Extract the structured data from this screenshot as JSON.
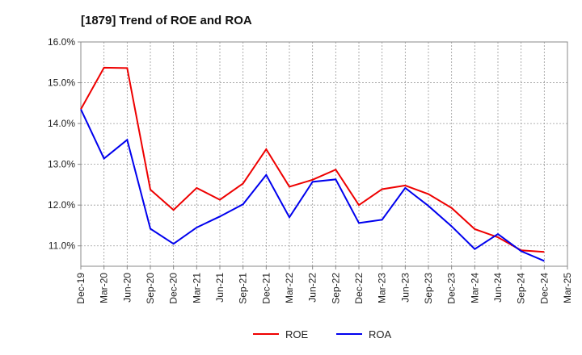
{
  "chart_data": {
    "type": "line",
    "title": "[1879]  Trend of ROE and ROA",
    "xlabel": "",
    "ylabel": "",
    "x": [
      "Dec-19",
      "Mar-20",
      "Jun-20",
      "Sep-20",
      "Dec-20",
      "Mar-21",
      "Jun-21",
      "Sep-21",
      "Dec-21",
      "Mar-22",
      "Jun-22",
      "Sep-22",
      "Dec-22",
      "Mar-23",
      "Jun-23",
      "Sep-23",
      "Dec-23",
      "Mar-24",
      "Jun-24",
      "Sep-24",
      "Dec-24",
      "Mar-25"
    ],
    "ylim": [
      10.5,
      16.0
    ],
    "yticks": [
      11.0,
      12.0,
      13.0,
      14.0,
      15.0,
      16.0
    ],
    "ytick_labels": [
      "11.0%",
      "12.0%",
      "13.0%",
      "14.0%",
      "15.0%",
      "16.0%"
    ],
    "grid": true,
    "legend_position": "bottom-center",
    "series": [
      {
        "name": "ROE",
        "color": "#ee0000",
        "values": [
          14.35,
          15.37,
          15.36,
          12.38,
          11.88,
          12.42,
          12.13,
          12.53,
          13.37,
          12.45,
          12.62,
          12.87,
          12.0,
          12.39,
          12.48,
          12.27,
          11.93,
          11.41,
          11.21,
          10.89,
          10.85,
          null
        ]
      },
      {
        "name": "ROA",
        "color": "#0000ee",
        "values": [
          14.35,
          13.14,
          13.6,
          11.42,
          11.05,
          11.45,
          11.72,
          12.02,
          12.74,
          11.7,
          12.57,
          12.63,
          11.56,
          11.64,
          12.42,
          11.98,
          11.48,
          10.92,
          11.29,
          10.87,
          10.63,
          null
        ]
      }
    ]
  }
}
